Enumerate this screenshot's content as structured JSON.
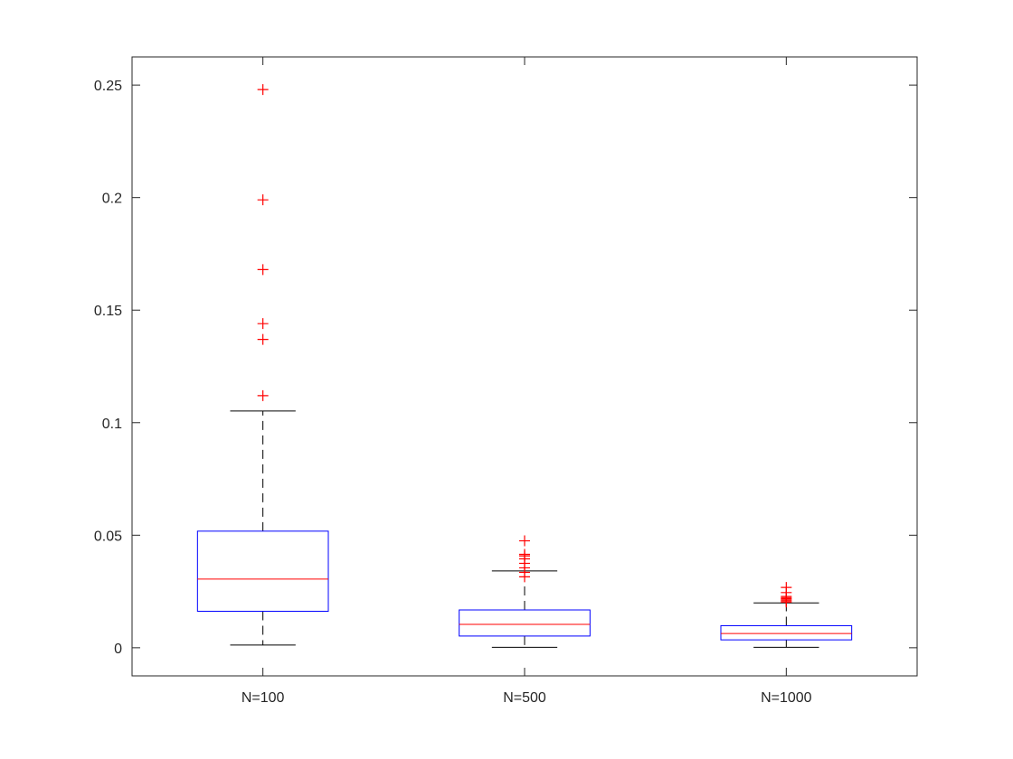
{
  "chart_data": {
    "type": "box",
    "title": "",
    "xlabel": "",
    "ylabel": "",
    "ylim": [
      -0.0125,
      0.2625
    ],
    "yticks": [
      0,
      0.05,
      0.1,
      0.15,
      0.2,
      0.25
    ],
    "ytick_labels": [
      "0",
      "0.05",
      "0.1",
      "0.15",
      "0.2",
      "0.25"
    ],
    "grid": false,
    "categories": [
      "N=100",
      "N=500",
      "N=1000"
    ],
    "boxes": [
      {
        "category": "N=100",
        "whisker_low": 0.0012,
        "q1": 0.0162,
        "median": 0.0305,
        "q3": 0.0518,
        "whisker_high": 0.1052,
        "outliers": [
          0.112,
          0.137,
          0.144,
          0.168,
          0.199,
          0.248
        ]
      },
      {
        "category": "N=500",
        "whisker_low": 0.0002,
        "q1": 0.0052,
        "median": 0.0104,
        "q3": 0.0168,
        "whisker_high": 0.0341,
        "outliers": [
          0.0315,
          0.0335,
          0.0355,
          0.0375,
          0.0395,
          0.0408,
          0.0415,
          0.0475
        ]
      },
      {
        "category": "N=1000",
        "whisker_low": 0.0002,
        "q1": 0.0035,
        "median": 0.0063,
        "q3": 0.0098,
        "whisker_high": 0.0199,
        "outliers": [
          0.0203,
          0.0208,
          0.0213,
          0.0218,
          0.0223,
          0.0228,
          0.0245,
          0.0268
        ]
      }
    ],
    "colors": {
      "box": "#0000ff",
      "median": "#ff0000",
      "outlier": "#ff0000",
      "whisker": "#000000",
      "axes": "#262626"
    }
  }
}
